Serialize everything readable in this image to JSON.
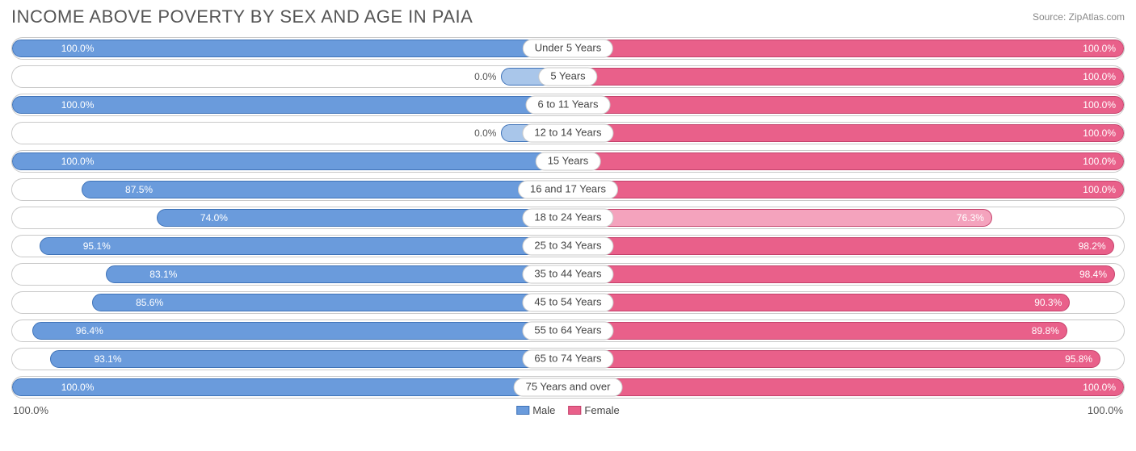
{
  "title": "INCOME ABOVE POVERTY BY SEX AND AGE IN PAIA",
  "source": "Source: ZipAtlas.com",
  "colors": {
    "male_fill": "#6a9bdc",
    "male_border": "#3f73b8",
    "male_faded": "#a9c6ea",
    "female_fill": "#e9608a",
    "female_border": "#c4416b",
    "female_faded": "#f4a3bd",
    "row_border": "#c9c9c9",
    "text": "#555555",
    "white": "#ffffff"
  },
  "axis": {
    "left": "100.0%",
    "right": "100.0%"
  },
  "legend": {
    "male": "Male",
    "female": "Female"
  },
  "rows": [
    {
      "age": "Under 5 Years",
      "male": 100.0,
      "female": 100.0,
      "male_lbl": "100.0%",
      "female_lbl": "100.0%"
    },
    {
      "age": "5 Years",
      "male": 0.0,
      "female": 100.0,
      "male_lbl": "0.0%",
      "female_lbl": "100.0%"
    },
    {
      "age": "6 to 11 Years",
      "male": 100.0,
      "female": 100.0,
      "male_lbl": "100.0%",
      "female_lbl": "100.0%"
    },
    {
      "age": "12 to 14 Years",
      "male": 0.0,
      "female": 100.0,
      "male_lbl": "0.0%",
      "female_lbl": "100.0%"
    },
    {
      "age": "15 Years",
      "male": 100.0,
      "female": 100.0,
      "male_lbl": "100.0%",
      "female_lbl": "100.0%"
    },
    {
      "age": "16 and 17 Years",
      "male": 87.5,
      "female": 100.0,
      "male_lbl": "87.5%",
      "female_lbl": "100.0%"
    },
    {
      "age": "18 to 24 Years",
      "male": 74.0,
      "female": 76.3,
      "male_lbl": "74.0%",
      "female_lbl": "76.3%"
    },
    {
      "age": "25 to 34 Years",
      "male": 95.1,
      "female": 98.2,
      "male_lbl": "95.1%",
      "female_lbl": "98.2%"
    },
    {
      "age": "35 to 44 Years",
      "male": 83.1,
      "female": 98.4,
      "male_lbl": "83.1%",
      "female_lbl": "98.4%"
    },
    {
      "age": "45 to 54 Years",
      "male": 85.6,
      "female": 90.3,
      "male_lbl": "85.6%",
      "female_lbl": "90.3%"
    },
    {
      "age": "55 to 64 Years",
      "male": 96.4,
      "female": 89.8,
      "male_lbl": "96.4%",
      "female_lbl": "89.8%"
    },
    {
      "age": "65 to 74 Years",
      "male": 93.1,
      "female": 95.8,
      "male_lbl": "93.1%",
      "female_lbl": "95.8%"
    },
    {
      "age": "75 Years and over",
      "male": 100.0,
      "female": 100.0,
      "male_lbl": "100.0%",
      "female_lbl": "100.0%"
    }
  ],
  "chart": {
    "type": "diverging-bar",
    "min_bar_pct": 12,
    "fade_threshold": 80
  }
}
